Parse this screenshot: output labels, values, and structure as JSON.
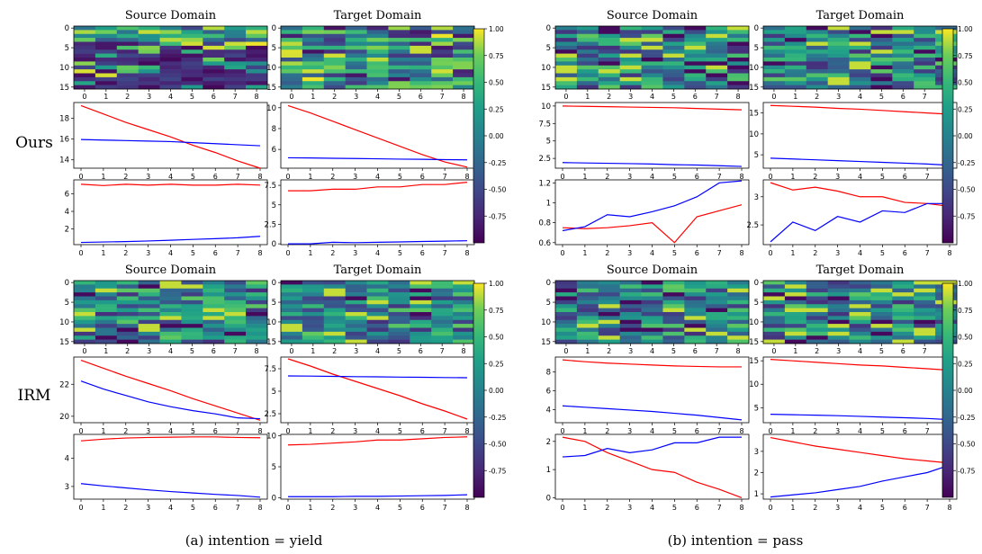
{
  "figure": {
    "row_labels": [
      "Ours",
      "IRM"
    ],
    "captions": [
      "(a) intention = yield",
      "(b) intention = pass"
    ],
    "colorbar": {
      "ticks": [
        "1.00",
        "0.75",
        "0.50",
        "0.25",
        "0.00",
        "-0.25",
        "-0.50",
        "-0.75"
      ],
      "colormap": "viridis",
      "range": [
        -1.0,
        1.0
      ]
    },
    "colors": {
      "red_series": "#ff0000",
      "blue_series": "#0000ff"
    }
  },
  "chart_data": [
    {
      "block": "Ours / intention = yield",
      "row": 0,
      "col": 0,
      "heatmap_titles": [
        "Source Domain",
        "Target Domain"
      ],
      "heatmap_pattern": [
        "dark",
        "bright"
      ],
      "charts": [
        {
          "type": "line",
          "x": [
            0,
            1,
            2,
            3,
            4,
            5,
            6,
            7,
            8
          ],
          "ylim": [
            13.2,
            19.5
          ],
          "yticks": [
            14,
            16,
            18
          ],
          "series": [
            {
              "color": "red",
              "values": [
                19.2,
                18.4,
                17.6,
                16.9,
                16.2,
                15.4,
                14.7,
                13.9,
                13.2
              ]
            },
            {
              "color": "blue",
              "values": [
                15.95,
                15.9,
                15.85,
                15.8,
                15.75,
                15.65,
                15.55,
                15.45,
                15.35
              ]
            }
          ]
        },
        {
          "type": "line",
          "x": [
            0,
            1,
            2,
            3,
            4,
            5,
            6,
            7,
            8
          ],
          "ylim": [
            4.2,
            10.5
          ],
          "yticks": [
            6,
            8,
            10
          ],
          "series": [
            {
              "color": "red",
              "values": [
                10.2,
                9.5,
                8.7,
                7.9,
                7.1,
                6.3,
                5.5,
                4.8,
                4.3
              ]
            },
            {
              "color": "blue",
              "values": [
                5.2,
                5.18,
                5.15,
                5.13,
                5.1,
                5.07,
                5.05,
                5.02,
                5.0
              ]
            }
          ]
        },
        {
          "type": "line",
          "x": [
            0,
            1,
            2,
            3,
            4,
            5,
            6,
            7,
            8
          ],
          "ylim": [
            0.2,
            7.6
          ],
          "yticks": [
            2,
            4,
            6
          ],
          "series": [
            {
              "color": "red",
              "values": [
                7.1,
                6.95,
                7.1,
                7.0,
                7.1,
                7.0,
                7.0,
                7.1,
                7.0
              ]
            },
            {
              "color": "blue",
              "values": [
                0.45,
                0.5,
                0.55,
                0.62,
                0.7,
                0.8,
                0.88,
                0.98,
                1.15
              ]
            }
          ]
        },
        {
          "type": "line",
          "x": [
            0,
            1,
            2,
            3,
            4,
            5,
            6,
            7,
            8
          ],
          "ylim": [
            -0.1,
            8.2
          ],
          "yticks": [
            0.0,
            2.5,
            5.0,
            7.5
          ],
          "series": [
            {
              "color": "red",
              "values": [
                6.8,
                6.8,
                7.0,
                7.0,
                7.3,
                7.3,
                7.6,
                7.6,
                7.9
              ]
            },
            {
              "color": "blue",
              "values": [
                0.0,
                0.0,
                0.2,
                0.15,
                0.2,
                0.25,
                0.3,
                0.35,
                0.4
              ]
            }
          ]
        }
      ]
    },
    {
      "block": "Ours / intention = pass",
      "row": 0,
      "col": 1,
      "heatmap_titles": [
        "Source Domain",
        "Target Domain"
      ],
      "heatmap_pattern": [
        "mixed",
        "mixed"
      ],
      "charts": [
        {
          "type": "line",
          "x": [
            0,
            1,
            2,
            3,
            4,
            5,
            6,
            7,
            8
          ],
          "ylim": [
            1.1,
            10.5
          ],
          "yticks": [
            2.5,
            5.0,
            7.5,
            10.0
          ],
          "series": [
            {
              "color": "red",
              "values": [
                10.0,
                9.95,
                9.9,
                9.85,
                9.8,
                9.75,
                9.65,
                9.55,
                9.45
              ]
            },
            {
              "color": "blue",
              "values": [
                1.9,
                1.85,
                1.8,
                1.75,
                1.7,
                1.6,
                1.55,
                1.45,
                1.35
              ]
            }
          ]
        },
        {
          "type": "line",
          "x": [
            0,
            1,
            2,
            3,
            4,
            5,
            6,
            7,
            8
          ],
          "ylim": [
            1.8,
            17.5
          ],
          "yticks": [
            5,
            10,
            15
          ],
          "series": [
            {
              "color": "red",
              "values": [
                16.8,
                16.6,
                16.4,
                16.1,
                15.9,
                15.6,
                15.3,
                15.0,
                14.7
              ]
            },
            {
              "color": "blue",
              "values": [
                4.2,
                4.0,
                3.8,
                3.6,
                3.4,
                3.2,
                3.0,
                2.8,
                2.5
              ]
            }
          ]
        },
        {
          "type": "line",
          "x": [
            0,
            1,
            2,
            3,
            4,
            5,
            6,
            7,
            8
          ],
          "ylim": [
            0.58,
            1.23
          ],
          "yticks": [
            0.6,
            0.8,
            1.0,
            1.2
          ],
          "series": [
            {
              "color": "red",
              "values": [
                0.75,
                0.74,
                0.75,
                0.77,
                0.8,
                0.6,
                0.86,
                0.92,
                0.98
              ]
            },
            {
              "color": "blue",
              "values": [
                0.72,
                0.76,
                0.88,
                0.86,
                0.91,
                0.97,
                1.06,
                1.2,
                1.22
              ]
            }
          ]
        },
        {
          "type": "line",
          "x": [
            0,
            1,
            2,
            3,
            4,
            5,
            6,
            7,
            8
          ],
          "ylim": [
            2.15,
            3.3
          ],
          "yticks": [
            2.5,
            3.0
          ],
          "series": [
            {
              "color": "red",
              "values": [
                3.25,
                3.12,
                3.17,
                3.1,
                3.0,
                3.0,
                2.9,
                2.88,
                2.83
              ]
            },
            {
              "color": "blue",
              "values": [
                2.2,
                2.55,
                2.4,
                2.65,
                2.55,
                2.75,
                2.72,
                2.88,
                2.88
              ]
            }
          ]
        }
      ]
    },
    {
      "block": "IRM / intention = yield",
      "row": 1,
      "col": 0,
      "heatmap_titles": [
        "Source Domain",
        "Target Domain"
      ],
      "heatmap_pattern": [
        "mixed",
        "mixed"
      ],
      "charts": [
        {
          "type": "line",
          "x": [
            0,
            1,
            2,
            3,
            4,
            5,
            6,
            7,
            8
          ],
          "ylim": [
            19.6,
            23.7
          ],
          "yticks": [
            20,
            22
          ],
          "series": [
            {
              "color": "red",
              "values": [
                23.5,
                23.0,
                22.5,
                22.05,
                21.6,
                21.1,
                20.65,
                20.2,
                19.75
              ]
            },
            {
              "color": "blue",
              "values": [
                22.2,
                21.7,
                21.3,
                20.9,
                20.6,
                20.35,
                20.15,
                19.9,
                19.85
              ]
            }
          ]
        },
        {
          "type": "line",
          "x": [
            0,
            1,
            2,
            3,
            4,
            5,
            6,
            7,
            8
          ],
          "ylim": [
            1.5,
            8.8
          ],
          "yticks": [
            2.5,
            5.0,
            7.5
          ],
          "series": [
            {
              "color": "red",
              "values": [
                8.6,
                7.8,
                6.9,
                6.1,
                5.3,
                4.5,
                3.6,
                2.8,
                1.9
              ]
            },
            {
              "color": "blue",
              "values": [
                6.7,
                6.68,
                6.65,
                6.62,
                6.6,
                6.57,
                6.55,
                6.52,
                6.5
              ]
            }
          ]
        },
        {
          "type": "line",
          "x": [
            0,
            1,
            2,
            3,
            4,
            5,
            6,
            7,
            8
          ],
          "ylim": [
            2.55,
            4.85
          ],
          "yticks": [
            3,
            4
          ],
          "series": [
            {
              "color": "red",
              "values": [
                4.62,
                4.68,
                4.72,
                4.74,
                4.75,
                4.76,
                4.76,
                4.74,
                4.73
              ]
            },
            {
              "color": "blue",
              "values": [
                3.1,
                3.02,
                2.95,
                2.88,
                2.82,
                2.77,
                2.72,
                2.68,
                2.62
              ]
            }
          ]
        },
        {
          "type": "line",
          "x": [
            0,
            1,
            2,
            3,
            4,
            5,
            6,
            7,
            8
          ],
          "ylim": [
            -0.2,
            10.2
          ],
          "yticks": [
            0,
            5,
            10
          ],
          "series": [
            {
              "color": "red",
              "values": [
                8.5,
                8.6,
                8.8,
                9.0,
                9.3,
                9.3,
                9.5,
                9.7,
                9.8
              ]
            },
            {
              "color": "blue",
              "values": [
                0.2,
                0.2,
                0.2,
                0.25,
                0.25,
                0.3,
                0.35,
                0.4,
                0.5
              ]
            }
          ]
        }
      ]
    },
    {
      "block": "IRM / intention = pass",
      "row": 1,
      "col": 1,
      "heatmap_titles": [
        "Source Domain",
        "Target Domain"
      ],
      "heatmap_pattern": [
        "mixed",
        "mixed"
      ],
      "charts": [
        {
          "type": "line",
          "x": [
            0,
            1,
            2,
            3,
            4,
            5,
            6,
            7,
            8
          ],
          "ylim": [
            2.6,
            9.6
          ],
          "yticks": [
            4,
            6,
            8
          ],
          "series": [
            {
              "color": "red",
              "values": [
                9.3,
                9.1,
                8.95,
                8.85,
                8.75,
                8.65,
                8.6,
                8.55,
                8.55
              ]
            },
            {
              "color": "blue",
              "values": [
                4.4,
                4.25,
                4.1,
                3.95,
                3.8,
                3.6,
                3.4,
                3.15,
                2.9
              ]
            }
          ]
        },
        {
          "type": "line",
          "x": [
            0,
            1,
            2,
            3,
            4,
            5,
            6,
            7,
            8
          ],
          "ylim": [
            1.8,
            15.8
          ],
          "yticks": [
            5,
            10,
            15
          ],
          "series": [
            {
              "color": "red",
              "values": [
                15.3,
                15.0,
                14.7,
                14.4,
                14.1,
                13.9,
                13.6,
                13.3,
                13.0
              ]
            },
            {
              "color": "blue",
              "values": [
                3.6,
                3.5,
                3.4,
                3.3,
                3.15,
                3.0,
                2.85,
                2.7,
                2.45
              ]
            }
          ]
        },
        {
          "type": "line",
          "x": [
            0,
            1,
            2,
            3,
            4,
            5,
            6,
            7,
            8
          ],
          "ylim": [
            -0.05,
            2.25
          ],
          "yticks": [
            0,
            1,
            2
          ],
          "series": [
            {
              "color": "red",
              "values": [
                2.15,
                2.0,
                1.6,
                1.3,
                1.0,
                0.9,
                0.55,
                0.3,
                0.0
              ]
            },
            {
              "color": "blue",
              "values": [
                1.45,
                1.5,
                1.75,
                1.6,
                1.7,
                1.95,
                1.95,
                2.15,
                2.15
              ]
            }
          ]
        },
        {
          "type": "line",
          "x": [
            0,
            1,
            2,
            3,
            4,
            5,
            6,
            7,
            8
          ],
          "ylim": [
            0.75,
            3.8
          ],
          "yticks": [
            1,
            2,
            3
          ],
          "series": [
            {
              "color": "red",
              "values": [
                3.65,
                3.45,
                3.25,
                3.1,
                2.95,
                2.8,
                2.65,
                2.55,
                2.45
              ]
            },
            {
              "color": "blue",
              "values": [
                0.85,
                0.95,
                1.05,
                1.2,
                1.35,
                1.6,
                1.8,
                2.0,
                2.35
              ]
            }
          ]
        }
      ]
    }
  ]
}
